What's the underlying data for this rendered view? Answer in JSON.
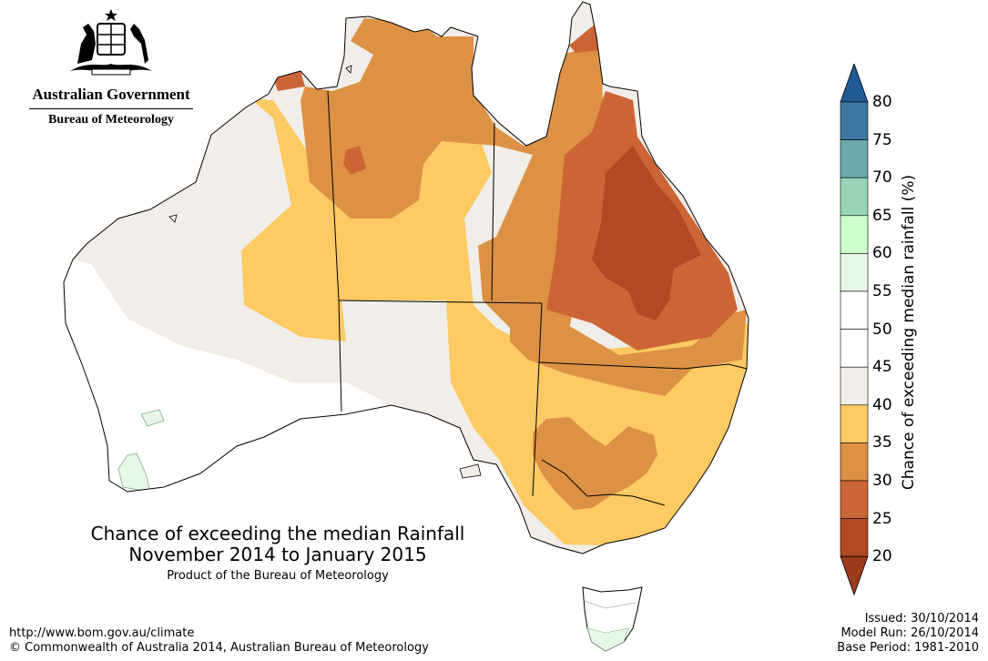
{
  "header": {
    "government": "Australian Government",
    "agency": "Bureau of Meteorology"
  },
  "title": {
    "line1": "Chance of exceeding the median Rainfall",
    "line2": "November 2014 to January 2015",
    "line3": "Product of the Bureau of Meteorology"
  },
  "footer": {
    "url": "http://www.bom.gov.au/climate",
    "copyright": "© Commonwealth of Australia 2014, Australian Bureau of Meteorology",
    "issued": "Issued: 30/10/2014",
    "model_run": "Model Run: 26/10/2014",
    "base_period": "Base Period: 1981-2010"
  },
  "legend": {
    "title": "Chance of exceeding median rainfall (%)",
    "ticks": [
      "80",
      "75",
      "70",
      "65",
      "60",
      "55",
      "50",
      "45",
      "40",
      "35",
      "30",
      "25",
      "20"
    ],
    "bands": [
      {
        "range": "<20",
        "color": "#9c3a1e"
      },
      {
        "range": "20-25",
        "color": "#b04a24"
      },
      {
        "range": "25-30",
        "color": "#cc6535"
      },
      {
        "range": "30-35",
        "color": "#dd9145"
      },
      {
        "range": "35-40",
        "color": "#fdca63"
      },
      {
        "range": "40-45",
        "color": "#f1ede8"
      },
      {
        "range": "45-50",
        "color": "#ffffff"
      },
      {
        "range": "50-55",
        "color": "#ffffff"
      },
      {
        "range": "55-60",
        "color": "#e8f5e9"
      },
      {
        "range": "60-65",
        "color": "#ccffcc"
      },
      {
        "range": "65-70",
        "color": "#99d4b8"
      },
      {
        "range": "70-75",
        "color": "#6aa8aa"
      },
      {
        "range": "75-80",
        "color": "#3e78a0"
      },
      {
        "range": ">80",
        "color": "#1f5a94"
      }
    ]
  },
  "map": {
    "colors": {
      "coast": "#000000",
      "state_border": "#000000"
    }
  }
}
